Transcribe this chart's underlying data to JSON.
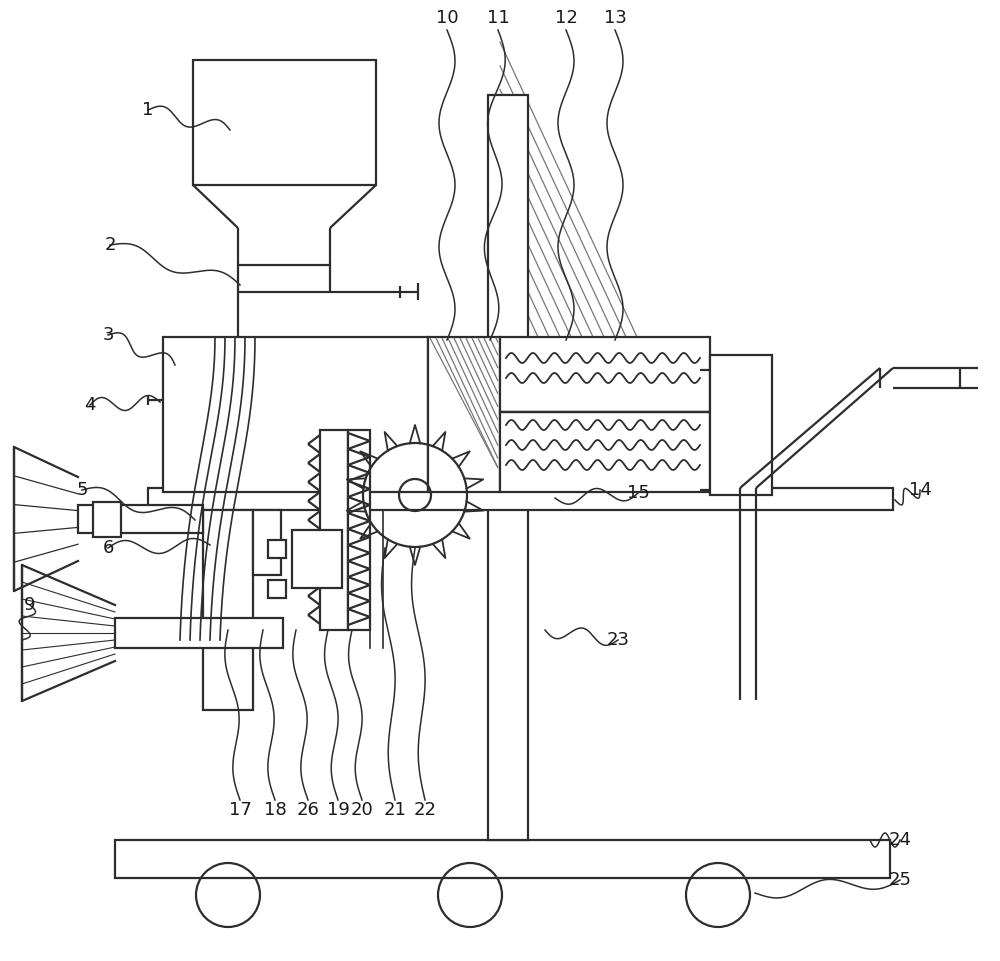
{
  "bg_color": "#ffffff",
  "line_color": "#2d2d2d",
  "label_color": "#1a1a1a",
  "figsize": [
    10.0,
    9.61
  ],
  "dpi": 100,
  "lw": 1.6,
  "hatch_color": "#777777"
}
